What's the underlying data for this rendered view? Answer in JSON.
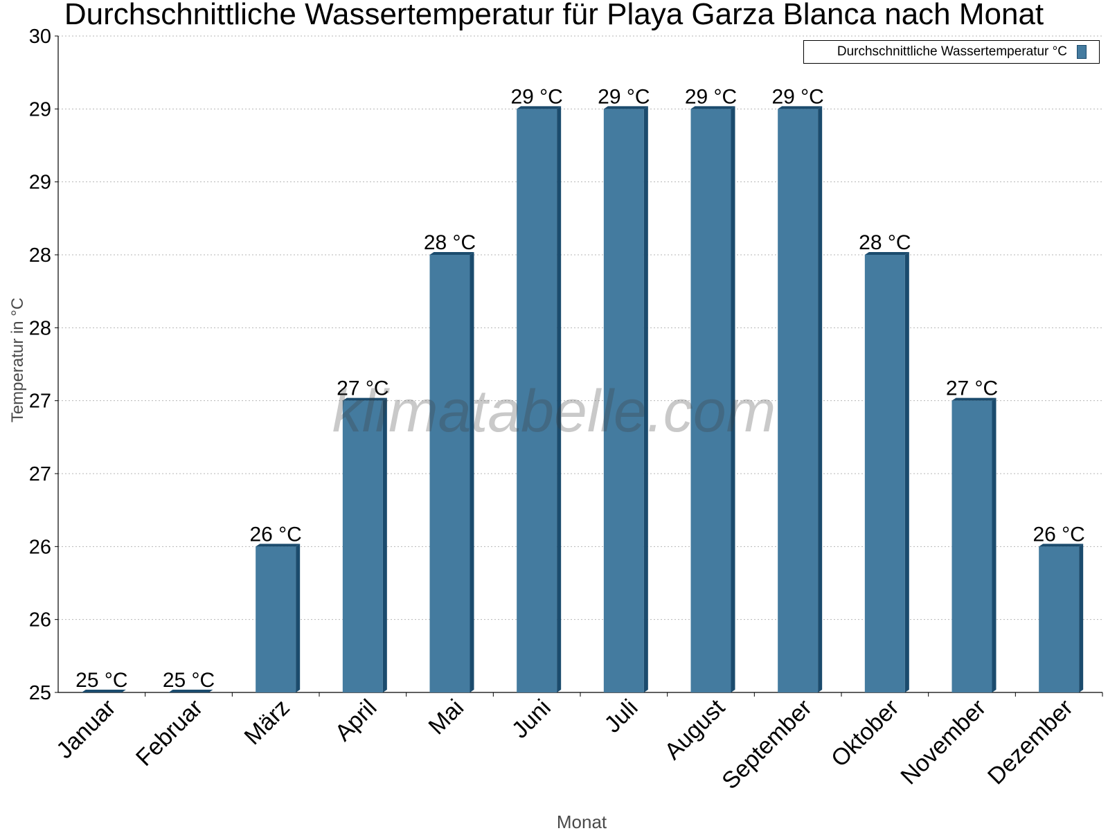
{
  "chart_data": {
    "type": "bar",
    "title": "Durchschnittliche Wassertemperatur für Playa Garza Blanca nach Monat",
    "xlabel": "Monat",
    "ylabel": "Temperatur in °C",
    "categories": [
      "Januar",
      "Februar",
      "März",
      "April",
      "Mai",
      "Juni",
      "Juli",
      "August",
      "September",
      "Oktober",
      "November",
      "Dezember"
    ],
    "series": [
      {
        "name": "Durchschnittliche Wassertemperatur °C",
        "values": [
          25.0,
          25.0,
          26.0,
          27.0,
          28.0,
          29.0,
          29.0,
          29.0,
          29.0,
          28.0,
          27.0,
          26.0
        ],
        "data_labels": [
          "25 °C",
          "25 °C",
          "26 °C",
          "27 °C",
          "28 °C",
          "29 °C",
          "29 °C",
          "29 °C",
          "29 °C",
          "28 °C",
          "27 °C",
          "26 °C"
        ],
        "color": "#447b9f",
        "edge_color": "#1b4b6d"
      }
    ],
    "ylim": [
      25,
      29.5
    ],
    "yticks": [
      25,
      25.5,
      26,
      26.5,
      27,
      27.5,
      28,
      28.5,
      29,
      29.5
    ],
    "ytick_labels": [
      "25",
      "26",
      "26",
      "27",
      "27",
      "28",
      "28",
      "29",
      "29",
      "30"
    ],
    "grid": true,
    "legend_position": "top-right",
    "watermark": "klimatabelle.com"
  }
}
